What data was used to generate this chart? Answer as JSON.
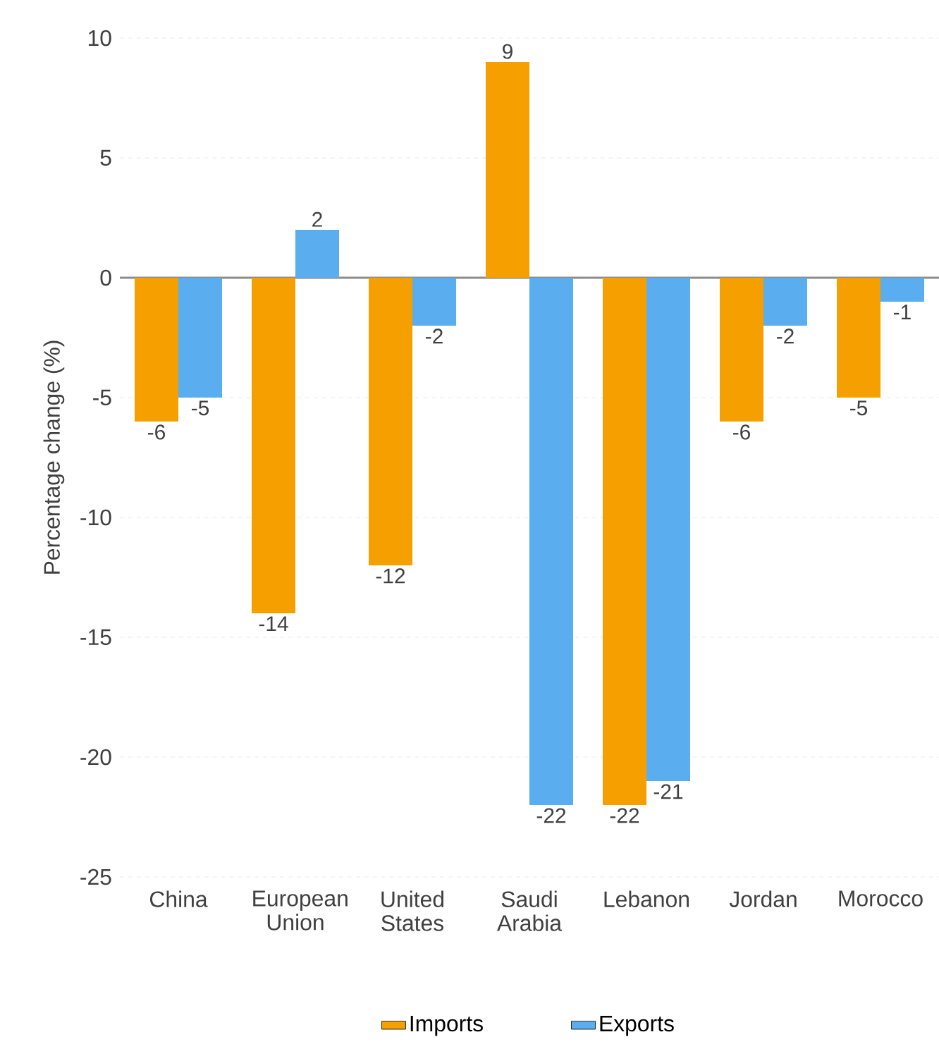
{
  "chart_data": {
    "type": "bar",
    "ylabel": "Percentage change (%)",
    "categories": [
      "China",
      "European Union",
      "United States",
      "Saudi Arabia",
      "Lebanon",
      "Jordan",
      "Morocco"
    ],
    "series": [
      {
        "name": "Imports",
        "color": "#f5a000",
        "values": [
          -6,
          -14,
          -12,
          9,
          -22,
          -6,
          -5
        ]
      },
      {
        "name": "Exports",
        "color": "#5aaeef",
        "values": [
          -5,
          2,
          -2,
          -22,
          -21,
          -2,
          -1
        ]
      }
    ],
    "ylim": [
      -25,
      10
    ],
    "yticks": [
      -25,
      -20,
      -15,
      -10,
      -5,
      0,
      5,
      10
    ],
    "grid": "y",
    "legend": "bottom",
    "data_labels": true
  }
}
